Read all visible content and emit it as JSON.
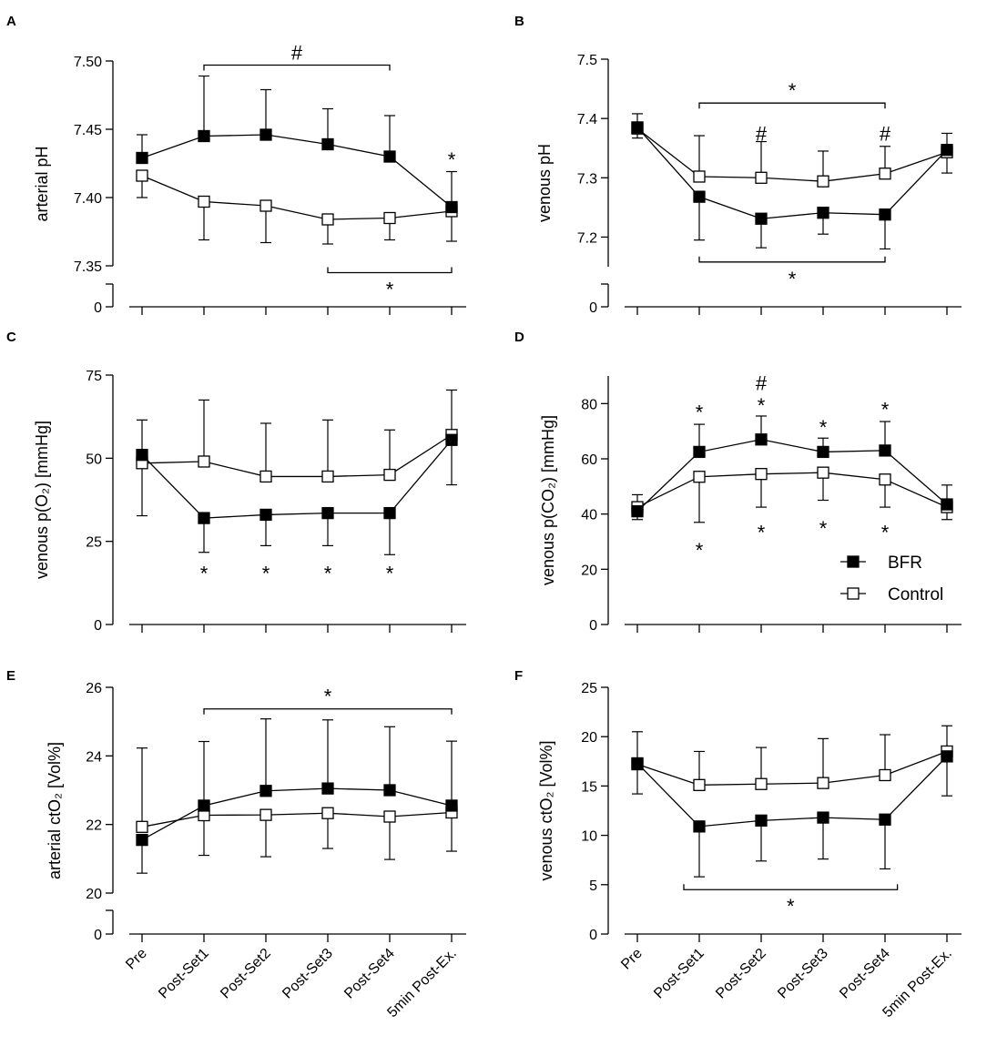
{
  "categories": [
    "Pre",
    "Post-Set1",
    "Post-Set2",
    "Post-Set3",
    "Post-Set4",
    "5min Post-Ex."
  ],
  "legend": {
    "bfr": "BFR",
    "control": "Control"
  },
  "colors": {
    "line": "#000000",
    "bfr_fill": "#000000",
    "control_fill": "#ffffff"
  },
  "chart_data": [
    {
      "panel": "A",
      "type": "line",
      "ylabel": "arterial pH",
      "ylim": [
        7.35,
        7.5
      ],
      "yticks": [
        "7.35",
        "7.40",
        "7.45",
        "7.50"
      ],
      "axis_break": true,
      "break_zero_label": "0",
      "series": [
        {
          "name": "BFR",
          "values": [
            7.429,
            7.445,
            7.446,
            7.439,
            7.43,
            7.393
          ],
          "err_up": [
            0.017,
            0.044,
            0.033,
            0.026,
            0.03,
            0.026
          ],
          "err_down": [
            0,
            0,
            0,
            0,
            0,
            0
          ]
        },
        {
          "name": "Control",
          "values": [
            7.416,
            7.397,
            7.394,
            7.384,
            7.385,
            7.39
          ],
          "err_up": [
            0,
            0,
            0,
            0,
            0,
            0
          ],
          "err_down": [
            0.016,
            0.028,
            0.027,
            0.018,
            0.016,
            0.022
          ]
        }
      ],
      "brackets": [
        {
          "label": "#",
          "from": 1,
          "to": 4,
          "y": 7.497,
          "side": "up"
        },
        {
          "label": "*",
          "from": 3,
          "to": 5,
          "y": 7.345,
          "side": "down"
        }
      ],
      "annotations": [
        {
          "label": "*",
          "x": 5,
          "y": 7.428
        }
      ]
    },
    {
      "panel": "B",
      "type": "line",
      "ylabel": "venous pH",
      "ylim": [
        7.15,
        7.5
      ],
      "yticks": [
        "7.2",
        "7.3",
        "7.4",
        "7.5"
      ],
      "axis_break": true,
      "break_zero_label": "0",
      "series": [
        {
          "name": "BFR",
          "values": [
            7.385,
            7.268,
            7.231,
            7.241,
            7.238,
            7.347
          ],
          "err_up": [
            0,
            0,
            0,
            0,
            0,
            0
          ],
          "err_down": [
            0.018,
            0.073,
            0.049,
            0.036,
            0.058,
            0.039
          ]
        },
        {
          "name": "Control",
          "values": [
            7.383,
            7.302,
            7.3,
            7.294,
            7.307,
            7.343
          ],
          "err_up": [
            0.025,
            0.069,
            0.061,
            0.051,
            0.046,
            0.032
          ],
          "err_down": [
            0,
            0,
            0,
            0,
            0,
            0
          ]
        }
      ],
      "brackets": [
        {
          "label": "*",
          "from": 1,
          "to": 4,
          "y": 7.426,
          "side": "up"
        },
        {
          "label": "*",
          "from": 1,
          "to": 4,
          "y": 7.158,
          "side": "down"
        }
      ],
      "annotations": [
        {
          "label": "#",
          "x": 2,
          "y": 7.375
        },
        {
          "label": "#",
          "x": 4,
          "y": 7.375
        }
      ]
    },
    {
      "panel": "C",
      "type": "line",
      "ylabel": "venous p(O₂) [mmHg]",
      "ylim": [
        0,
        75
      ],
      "yticks": [
        "0",
        "25",
        "50",
        "75"
      ],
      "axis_break": false,
      "series": [
        {
          "name": "BFR",
          "values": [
            51,
            32,
            33,
            33.5,
            33.5,
            55.5
          ],
          "err_up": [
            10.5,
            0,
            0,
            0,
            0,
            0
          ],
          "err_down": [
            0,
            10.3,
            9.3,
            9.8,
            12.5,
            13.5
          ]
        },
        {
          "name": "Control",
          "values": [
            48.5,
            49,
            44.5,
            44.5,
            45,
            57
          ],
          "err_up": [
            0,
            18.5,
            16,
            17,
            13.5,
            13.5
          ],
          "err_down": [
            15.8,
            0,
            0,
            0,
            0,
            0
          ]
        }
      ],
      "brackets": [],
      "annotations": [
        {
          "label": "*",
          "x": 1,
          "y": 15.5
        },
        {
          "label": "*",
          "x": 2,
          "y": 15.5
        },
        {
          "label": "*",
          "x": 3,
          "y": 15.5
        },
        {
          "label": "*",
          "x": 4,
          "y": 15.5
        }
      ]
    },
    {
      "panel": "D",
      "type": "line",
      "ylabel": "venous p(CO₂) [mmHg]",
      "ylim": [
        0,
        90
      ],
      "yticks": [
        "0",
        "20",
        "40",
        "60",
        "80"
      ],
      "axis_break": false,
      "series": [
        {
          "name": "BFR",
          "values": [
            41,
            62.5,
            67,
            62.5,
            63,
            43.5
          ],
          "err_up": [
            0,
            10,
            8.5,
            5,
            10.5,
            7
          ],
          "err_down": [
            3,
            0,
            0,
            0,
            0,
            0
          ]
        },
        {
          "name": "Control",
          "values": [
            42.5,
            53.5,
            54.5,
            55,
            52.5,
            42.5
          ],
          "err_up": [
            4.5,
            0,
            0,
            0,
            0,
            0
          ],
          "err_down": [
            0,
            16.5,
            12,
            10,
            10,
            4.5
          ]
        }
      ],
      "brackets": [],
      "annotations": [
        {
          "label": "*",
          "x": 1,
          "y": 77
        },
        {
          "label": "*",
          "x": 2,
          "y": 79.5
        },
        {
          "label": "#",
          "x": 2,
          "y": 87.5
        },
        {
          "label": "*",
          "x": 3,
          "y": 71.5
        },
        {
          "label": "*",
          "x": 4,
          "y": 78
        },
        {
          "label": "*",
          "x": 1,
          "y": 27
        },
        {
          "label": "*",
          "x": 2,
          "y": 33.5
        },
        {
          "label": "*",
          "x": 3,
          "y": 35
        },
        {
          "label": "*",
          "x": 4,
          "y": 33.5
        }
      ],
      "legend": true
    },
    {
      "panel": "E",
      "type": "line",
      "ylabel": "arterial ctO₂ [Vol%]",
      "ylim": [
        20,
        26
      ],
      "yticks": [
        "20",
        "22",
        "24",
        "26"
      ],
      "axis_break": true,
      "break_zero_label": "0",
      "series": [
        {
          "name": "BFR",
          "values": [
            21.55,
            22.55,
            22.98,
            23.05,
            23.0,
            22.55
          ],
          "err_up": [
            0,
            1.87,
            2.1,
            2.0,
            1.85,
            1.88
          ],
          "err_down": [
            0.97,
            0,
            0,
            0,
            0,
            0
          ]
        },
        {
          "name": "Control",
          "values": [
            21.93,
            22.27,
            22.28,
            22.33,
            22.23,
            22.35
          ],
          "err_up": [
            2.3,
            0,
            0,
            0,
            0,
            0
          ],
          "err_down": [
            0,
            1.17,
            1.22,
            1.03,
            1.25,
            1.13
          ]
        }
      ],
      "brackets": [
        {
          "label": "*",
          "from": 1,
          "to": 5,
          "y": 25.37,
          "side": "up"
        }
      ],
      "annotations": []
    },
    {
      "panel": "F",
      "type": "line",
      "ylabel": "venous ctO₂ [Vol%]",
      "ylim": [
        0,
        25
      ],
      "yticks": [
        "0",
        "5",
        "10",
        "15",
        "20",
        "25"
      ],
      "axis_break": false,
      "series": [
        {
          "name": "BFR",
          "values": [
            17.3,
            10.9,
            11.5,
            11.8,
            11.6,
            18.0
          ],
          "err_up": [
            0,
            0,
            0,
            0,
            0,
            0
          ],
          "err_down": [
            3.1,
            5.1,
            4.1,
            4.2,
            5.0,
            4.0
          ]
        },
        {
          "name": "Control",
          "values": [
            17.2,
            15.1,
            15.2,
            15.3,
            16.1,
            18.5
          ],
          "err_up": [
            3.3,
            3.4,
            3.7,
            4.5,
            4.1,
            2.6
          ],
          "err_down": [
            0,
            0,
            0,
            0,
            0,
            0
          ]
        }
      ],
      "brackets": [
        {
          "label": "*",
          "from": 0.75,
          "to": 4.2,
          "y": 4.5,
          "side": "down"
        }
      ],
      "annotations": []
    }
  ]
}
